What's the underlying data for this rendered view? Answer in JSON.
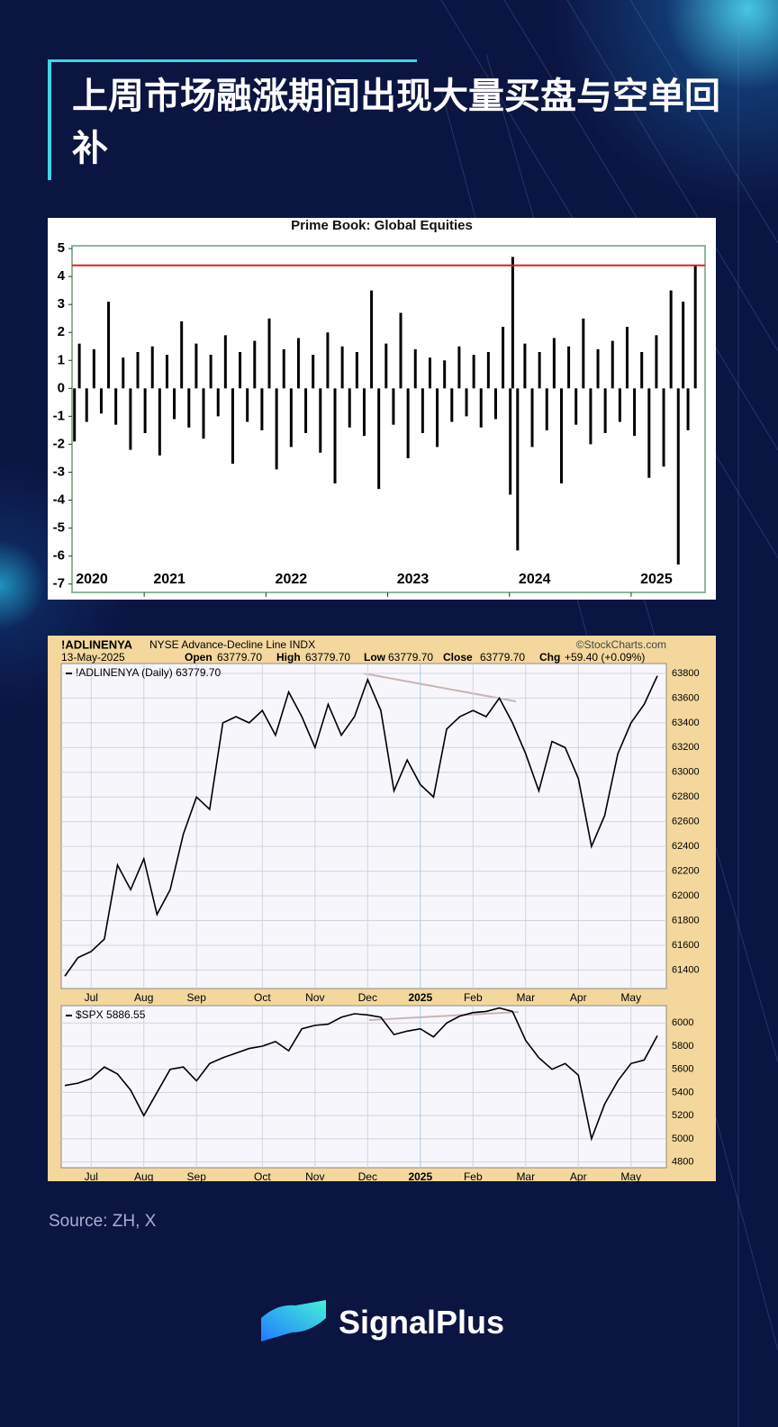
{
  "header": {
    "title": "上周市场融涨期间出现大量买盘与空单回补"
  },
  "chart_data": [
    {
      "type": "spike",
      "title": "Prime Book: Global Equities",
      "x_start_label": "2020",
      "x": [
        2020.22,
        2020.26,
        2020.32,
        2020.38,
        2020.44,
        2020.5,
        2020.56,
        2020.62,
        2020.68,
        2020.74,
        2020.8,
        2020.86,
        2020.92,
        2020.98,
        2021.04,
        2021.1,
        2021.16,
        2021.22,
        2021.28,
        2021.34,
        2021.4,
        2021.46,
        2021.52,
        2021.58,
        2021.64,
        2021.7,
        2021.76,
        2021.82,
        2021.88,
        2021.94,
        2022,
        2022.06,
        2022.12,
        2022.18,
        2022.24,
        2022.3,
        2022.36,
        2022.42,
        2022.48,
        2022.54,
        2022.6,
        2022.66,
        2022.72,
        2022.78,
        2022.84,
        2022.9,
        2022.96,
        2023.02,
        2023.08,
        2023.14,
        2023.2,
        2023.26,
        2023.32,
        2023.38,
        2023.44,
        2023.5,
        2023.56,
        2023.62,
        2023.68,
        2023.74,
        2023.8,
        2023.82,
        2023.86,
        2023.92,
        2023.98,
        2024.04,
        2024.1,
        2024.16,
        2024.22,
        2024.28,
        2024.34,
        2024.4,
        2024.46,
        2024.52,
        2024.58,
        2024.64,
        2024.7,
        2024.76,
        2024.82,
        2024.88,
        2024.94,
        2025,
        2025.06,
        2025.12,
        2025.18,
        2025.22,
        2025.26,
        2025.32
      ],
      "values": [
        -1.9,
        1.6,
        -1.2,
        1.4,
        -0.9,
        3.1,
        -1.3,
        1.1,
        -2.2,
        1.3,
        -1.6,
        1.5,
        -2.4,
        1.2,
        -1.1,
        2.4,
        -1.4,
        1.6,
        -1.8,
        1.2,
        -1.0,
        1.9,
        -2.7,
        1.3,
        -1.2,
        1.7,
        -1.5,
        2.5,
        -2.9,
        1.4,
        -2.1,
        1.8,
        -1.6,
        1.2,
        -2.3,
        2.0,
        -3.4,
        1.5,
        -1.4,
        1.3,
        -1.7,
        3.5,
        -3.6,
        1.6,
        -1.3,
        2.7,
        -2.5,
        1.4,
        -1.6,
        1.1,
        -2.1,
        1.0,
        -1.2,
        1.5,
        -1.0,
        1.2,
        -1.4,
        1.3,
        -1.1,
        2.2,
        -3.8,
        4.7,
        -5.8,
        1.6,
        -2.1,
        1.3,
        -1.5,
        1.8,
        -3.4,
        1.5,
        -1.3,
        2.5,
        -2.0,
        1.4,
        -1.6,
        1.7,
        -1.2,
        2.2,
        -1.7,
        1.3,
        -3.2,
        1.9,
        -2.8,
        3.5,
        -6.3,
        3.1,
        -1.5,
        4.4
      ],
      "color": "#000000",
      "hline": 4.4,
      "hline_color": "#e02020",
      "xlim": [
        2020.2,
        2025.4
      ],
      "xticks": [
        2021,
        2022,
        2023,
        2024,
        2025
      ],
      "ylim": [
        -7.3,
        5.1
      ],
      "yticks": [
        -7,
        -6,
        -5,
        -4,
        -3,
        -2,
        -1,
        0,
        1,
        2,
        3,
        4,
        5
      ]
    },
    {
      "type": "line",
      "title": "!ADLINENYA",
      "subtitle": "NYSE Advance-Decline Line INDX",
      "watermark": "©StockCharts.com",
      "date": "13-May-2025",
      "stats": [
        {
          "label": "Open",
          "value": "63779.70"
        },
        {
          "label": "High",
          "value": "63779.70"
        },
        {
          "label": "Low",
          "value": "63779.70"
        },
        {
          "label": "Close",
          "value": "63779.70"
        },
        {
          "label": "Chg",
          "value": "+59.40 (+0.09%)"
        }
      ],
      "categories": [
        null,
        null,
        "Jul",
        null,
        null,
        null,
        "Aug",
        null,
        null,
        null,
        "Sep",
        null,
        null,
        null,
        null,
        "Oct",
        null,
        null,
        null,
        "Nov",
        null,
        null,
        null,
        "Dec",
        null,
        null,
        null,
        "2025",
        null,
        null,
        null,
        "Feb",
        null,
        null,
        null,
        "Mar",
        null,
        null,
        null,
        "Apr",
        null,
        null,
        null,
        "May",
        null,
        null
      ],
      "series": [
        {
          "name": "!ADLINENYA (Daily) 63779.70",
          "color": "#000000",
          "values": [
            61350,
            61500,
            61550,
            61650,
            62250,
            62050,
            62300,
            61850,
            62050,
            62500,
            62800,
            62700,
            63400,
            63450,
            63400,
            63500,
            63300,
            63650,
            63450,
            63200,
            63550,
            63300,
            63450,
            63750,
            63500,
            62850,
            63100,
            62900,
            62800,
            63350,
            63450,
            63500,
            63450,
            63600,
            63400,
            63150,
            62850,
            63250,
            63200,
            62950,
            62400,
            62650,
            63150,
            63400,
            63550,
            63780
          ]
        }
      ],
      "ylim": [
        61250,
        63880
      ],
      "yticks": [
        61400,
        61600,
        61800,
        62000,
        62200,
        62400,
        62600,
        62800,
        63000,
        63200,
        63400,
        63600,
        63800
      ],
      "grid": true
    },
    {
      "type": "line",
      "categories": [
        null,
        null,
        "Jul",
        null,
        null,
        null,
        "Aug",
        null,
        null,
        null,
        "Sep",
        null,
        null,
        null,
        null,
        "Oct",
        null,
        null,
        null,
        "Nov",
        null,
        null,
        null,
        "Dec",
        null,
        null,
        null,
        "2025",
        null,
        null,
        null,
        "Feb",
        null,
        null,
        null,
        "Mar",
        null,
        null,
        null,
        "Apr",
        null,
        null,
        null,
        "May",
        null,
        null
      ],
      "series": [
        {
          "name": "$SPX 5886.55",
          "color": "#000000",
          "values": [
            5460,
            5480,
            5520,
            5620,
            5560,
            5420,
            5200,
            5400,
            5600,
            5620,
            5500,
            5650,
            5700,
            5740,
            5780,
            5800,
            5840,
            5760,
            5950,
            5980,
            5990,
            6050,
            6080,
            6070,
            6050,
            5900,
            5930,
            5950,
            5880,
            6000,
            6060,
            6090,
            6100,
            6130,
            6100,
            5850,
            5700,
            5600,
            5650,
            5550,
            5000,
            5300,
            5500,
            5650,
            5680,
            5890
          ]
        }
      ],
      "ylim": [
        4750,
        6150
      ],
      "yticks": [
        4800,
        5000,
        5200,
        5400,
        5600,
        5800,
        6000
      ],
      "grid": true
    }
  ],
  "source": "Source: ZH, X",
  "brand": "SignalPlus"
}
